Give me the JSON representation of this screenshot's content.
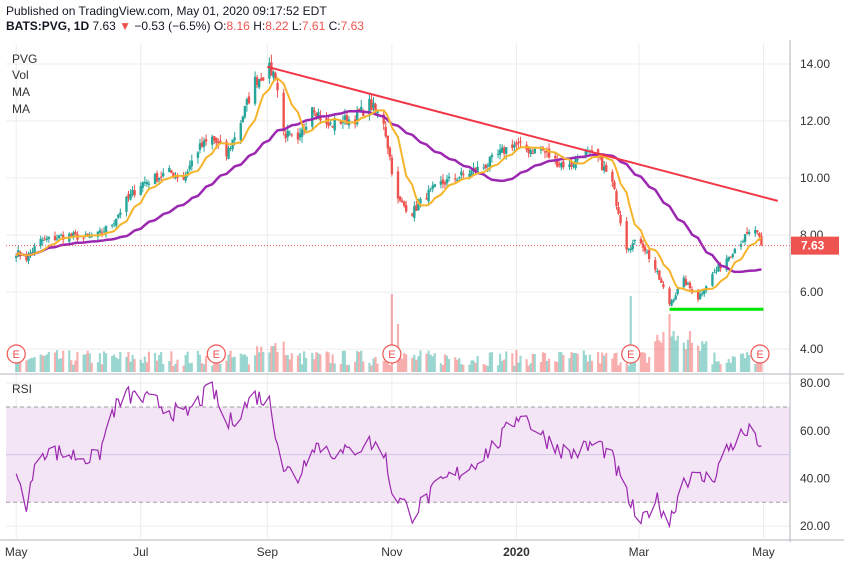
{
  "header": {
    "published": "Published on TradingView.com, May 01, 2020 09:17:52 EDT",
    "symbol": "BATS:PVG, 1D",
    "last": "7.63",
    "arrow": "▼",
    "change": "−0.53 (−6.5%)",
    "o_label": "O:",
    "o_value": "8.16",
    "h_label": "H:",
    "h_value": "8.22",
    "l_label": "L:",
    "l_value": "7.61",
    "c_label": "C:",
    "c_value": "7.63"
  },
  "legend": {
    "ticker": "PVG",
    "vol": "Vol",
    "ma1": "MA",
    "ma2": "MA"
  },
  "rsi_label": "RSI",
  "price_badge": "7.63",
  "earnings_marker": "E",
  "colors": {
    "up": "#26a69a",
    "down": "#ef5350",
    "ma_fast": "#f6b42b",
    "ma_slow": "#9c27b0",
    "trendline": "#f23645",
    "support": "#00e600",
    "rsi": "#9c27b0",
    "rsi_band": "#f3e5f5"
  },
  "chart_data": [
    {
      "type": "candlestick",
      "title": "PVG",
      "x_ticks": [
        "May",
        "Jul",
        "Sep",
        "Nov",
        "2020",
        "Mar",
        "May"
      ],
      "y_ticks": [
        "4.00",
        "6.00",
        "8.00",
        "10.00",
        "12.00",
        "14.00"
      ],
      "ylim": [
        3.2,
        14.7
      ],
      "last_price": 7.63,
      "anchor_closes": [
        [
          "2019-05-01",
          7.4
        ],
        [
          "2019-05-06",
          7.2
        ],
        [
          "2019-05-13",
          7.8
        ],
        [
          "2019-05-20",
          7.9
        ],
        [
          "2019-05-27",
          8.0
        ],
        [
          "2019-06-03",
          7.9
        ],
        [
          "2019-06-10",
          8.0
        ],
        [
          "2019-06-17",
          8.4
        ],
        [
          "2019-06-24",
          9.2
        ],
        [
          "2019-07-01",
          9.8
        ],
        [
          "2019-07-08",
          10.0
        ],
        [
          "2019-07-15",
          10.2
        ],
        [
          "2019-07-22",
          10.0
        ],
        [
          "2019-07-29",
          11.0
        ],
        [
          "2019-08-05",
          11.4
        ],
        [
          "2019-08-12",
          10.8
        ],
        [
          "2019-08-19",
          12.0
        ],
        [
          "2019-08-26",
          13.4
        ],
        [
          "2019-09-02",
          13.8
        ],
        [
          "2019-09-05",
          13.6
        ],
        [
          "2019-09-09",
          11.6
        ],
        [
          "2019-09-16",
          11.2
        ],
        [
          "2019-09-23",
          12.6
        ],
        [
          "2019-09-30",
          11.8
        ],
        [
          "2019-10-07",
          12.0
        ],
        [
          "2019-10-14",
          12.1
        ],
        [
          "2019-10-21",
          12.6
        ],
        [
          "2019-10-28",
          12.0
        ],
        [
          "2019-11-01",
          10.3
        ],
        [
          "2019-11-04",
          9.2
        ],
        [
          "2019-11-11",
          8.8
        ],
        [
          "2019-11-18",
          9.4
        ],
        [
          "2019-11-25",
          9.8
        ],
        [
          "2019-12-02",
          10.0
        ],
        [
          "2019-12-09",
          10.2
        ],
        [
          "2019-12-16",
          10.4
        ],
        [
          "2019-12-23",
          10.8
        ],
        [
          "2019-12-30",
          11.2
        ],
        [
          "2020-01-06",
          11.0
        ],
        [
          "2020-01-13",
          11.0
        ],
        [
          "2020-01-20",
          10.6
        ],
        [
          "2020-01-27",
          10.4
        ],
        [
          "2020-02-03",
          10.9
        ],
        [
          "2020-02-10",
          10.7
        ],
        [
          "2020-02-17",
          9.8
        ],
        [
          "2020-02-24",
          7.6
        ],
        [
          "2020-03-02",
          7.8
        ],
        [
          "2020-03-09",
          6.8
        ],
        [
          "2020-03-16",
          5.6
        ],
        [
          "2020-03-23",
          6.4
        ],
        [
          "2020-03-30",
          5.8
        ],
        [
          "2020-04-06",
          6.6
        ],
        [
          "2020-04-13",
          7.2
        ],
        [
          "2020-04-20",
          7.8
        ],
        [
          "2020-04-27",
          8.2
        ],
        [
          "2020-04-30",
          7.63
        ]
      ],
      "trendline": [
        [
          "2019-09-01",
          13.9
        ],
        [
          "2020-05-08",
          9.2
        ]
      ],
      "support_line": [
        [
          "2020-03-16",
          5.4
        ],
        [
          "2020-05-01",
          5.4
        ]
      ],
      "earnings_dates": [
        "2019-05-01",
        "2019-08-07",
        "2019-11-01",
        "2020-02-26",
        "2020-05-01"
      ],
      "ma_slow_end": 7.0
    },
    {
      "type": "line",
      "title": "RSI",
      "y_ticks": [
        "20.00",
        "40.00",
        "60.00",
        "80.00"
      ],
      "ylim": [
        15,
        83
      ],
      "band": [
        30,
        70
      ],
      "midline": 50,
      "anchor_values": [
        [
          "2019-05-01",
          40
        ],
        [
          "2019-05-06",
          30
        ],
        [
          "2019-05-13",
          52
        ],
        [
          "2019-05-27",
          50
        ],
        [
          "2019-06-10",
          48
        ],
        [
          "2019-06-17",
          68
        ],
        [
          "2019-06-24",
          75
        ],
        [
          "2019-07-08",
          72
        ],
        [
          "2019-07-22",
          66
        ],
        [
          "2019-08-05",
          78
        ],
        [
          "2019-08-12",
          62
        ],
        [
          "2019-08-26",
          75
        ],
        [
          "2019-09-02",
          72
        ],
        [
          "2019-09-09",
          45
        ],
        [
          "2019-09-16",
          40
        ],
        [
          "2019-09-23",
          55
        ],
        [
          "2019-10-07",
          50
        ],
        [
          "2019-10-21",
          55
        ],
        [
          "2019-10-28",
          52
        ],
        [
          "2019-11-01",
          35
        ],
        [
          "2019-11-11",
          25
        ],
        [
          "2019-11-25",
          38
        ],
        [
          "2019-12-09",
          45
        ],
        [
          "2019-12-23",
          55
        ],
        [
          "2020-01-03",
          68
        ],
        [
          "2020-01-13",
          58
        ],
        [
          "2020-01-27",
          50
        ],
        [
          "2020-02-10",
          55
        ],
        [
          "2020-02-17",
          48
        ],
        [
          "2020-02-24",
          33
        ],
        [
          "2020-03-02",
          20
        ],
        [
          "2020-03-09",
          32
        ],
        [
          "2020-03-16",
          22
        ],
        [
          "2020-03-23",
          40
        ],
        [
          "2020-04-06",
          40
        ],
        [
          "2020-04-13",
          52
        ],
        [
          "2020-04-20",
          58
        ],
        [
          "2020-04-27",
          60
        ],
        [
          "2020-04-30",
          50
        ]
      ]
    }
  ]
}
